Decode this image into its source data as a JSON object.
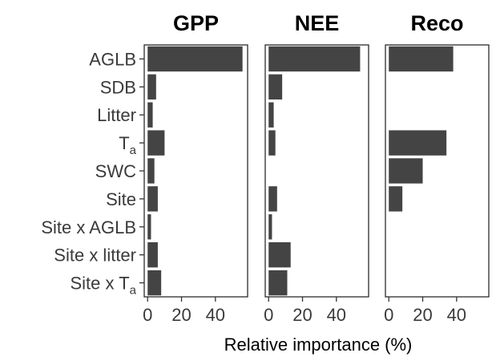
{
  "chart_data": {
    "type": "bar",
    "orientation": "horizontal",
    "categories": [
      {
        "text": "AGLB",
        "sub": ""
      },
      {
        "text": "SDB",
        "sub": ""
      },
      {
        "text": "Litter",
        "sub": ""
      },
      {
        "text": "T",
        "sub": "a"
      },
      {
        "text": "SWC",
        "sub": ""
      },
      {
        "text": "Site",
        "sub": ""
      },
      {
        "text": "Site x AGLB",
        "sub": ""
      },
      {
        "text": "Site x litter",
        "sub": ""
      },
      {
        "text": "Site x T",
        "sub": "a"
      }
    ],
    "panels": [
      {
        "title": "GPP",
        "values": [
          56,
          5,
          3,
          10,
          4,
          6,
          2,
          6,
          8
        ]
      },
      {
        "title": "NEE",
        "values": [
          54,
          8,
          3,
          4,
          0,
          5,
          2,
          13,
          11
        ]
      },
      {
        "title": "Reco",
        "values": [
          38,
          0,
          0,
          34,
          20,
          8,
          0,
          0,
          0
        ]
      }
    ],
    "xlim": [
      -2,
      59
    ],
    "xticks": [
      0,
      20,
      40
    ],
    "xlabel": "Relative importance (%)",
    "bar_color": "#444444",
    "grid": false
  }
}
